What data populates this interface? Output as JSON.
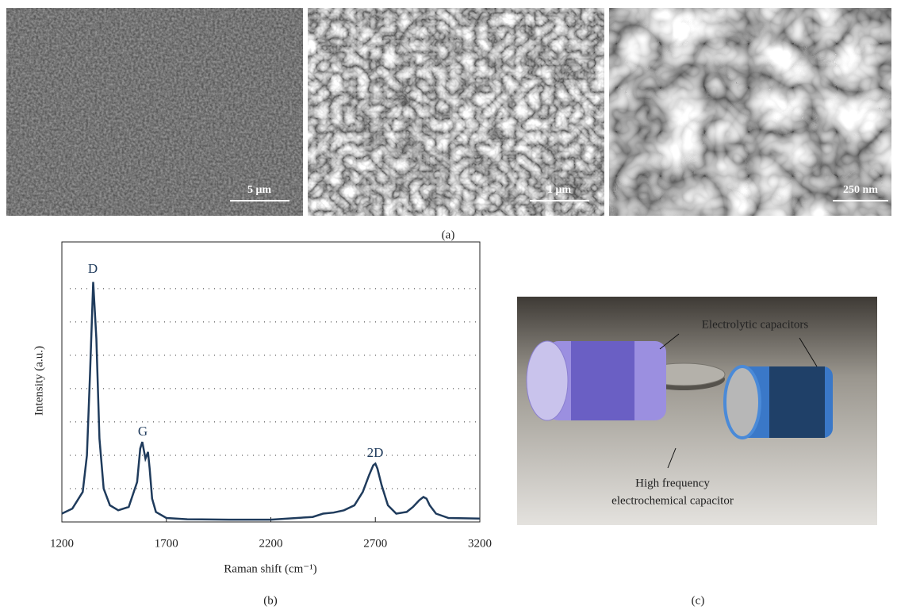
{
  "panel_a": {
    "scale_labels": [
      "5 μm",
      "1 μm",
      "250 nm"
    ],
    "caption": "(a)"
  },
  "chart_data": {
    "type": "line",
    "xlabel": "Raman shift (cm⁻¹)",
    "ylabel": "Intensity (a.u.)",
    "caption": "(b)",
    "x": [
      1200,
      1250,
      1300,
      1320,
      1335,
      1350,
      1365,
      1380,
      1400,
      1430,
      1470,
      1520,
      1560,
      1575,
      1585,
      1600,
      1612,
      1620,
      1632,
      1650,
      1700,
      1800,
      2000,
      2200,
      2400,
      2450,
      2500,
      2550,
      2600,
      2640,
      2670,
      2690,
      2700,
      2710,
      2730,
      2760,
      2800,
      2850,
      2880,
      2910,
      2930,
      2945,
      2960,
      2990,
      3050,
      3200
    ],
    "values": [
      0.25,
      0.4,
      0.9,
      2.0,
      4.5,
      7.2,
      5.5,
      2.5,
      1.0,
      0.5,
      0.35,
      0.45,
      1.2,
      2.2,
      2.4,
      1.9,
      2.1,
      1.6,
      0.7,
      0.3,
      0.12,
      0.08,
      0.07,
      0.07,
      0.15,
      0.25,
      0.28,
      0.35,
      0.5,
      0.9,
      1.4,
      1.7,
      1.75,
      1.6,
      1.1,
      0.5,
      0.25,
      0.3,
      0.45,
      0.65,
      0.75,
      0.7,
      0.5,
      0.25,
      0.12,
      0.1
    ],
    "color": "#1f3b5c",
    "xlim": [
      1200,
      3200
    ],
    "xticks": [
      1200,
      1700,
      2200,
      2700,
      3200
    ],
    "ylim": [
      0,
      8.4
    ],
    "ygrid": [
      1,
      2,
      3,
      4,
      5,
      6,
      7
    ],
    "annotations": [
      "D",
      "G",
      "2D"
    ]
  },
  "panel_c": {
    "labels": [
      "Electrolytic capacitors",
      "High frequency",
      "electrochemical capacitor"
    ],
    "caption": "(c)"
  }
}
